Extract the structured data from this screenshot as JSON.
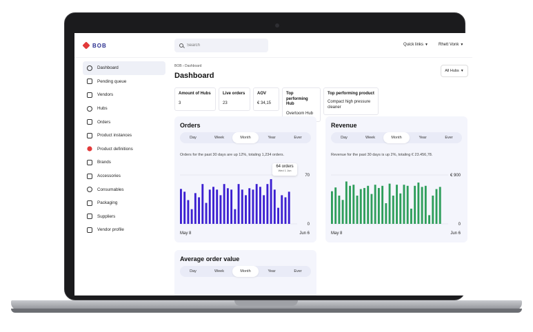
{
  "app": {
    "logo": "BOB"
  },
  "topbar": {
    "search_placeholder": "Search",
    "quick_links": "Quick links",
    "user_name": "Rhett Vonk"
  },
  "sidebar": {
    "items": [
      {
        "label": "Dashboard",
        "icon": "dashboard-icon"
      },
      {
        "label": "Pending queue",
        "icon": "queue-icon"
      },
      {
        "label": "Vendors",
        "icon": "vendors-icon"
      },
      {
        "label": "Hubs",
        "icon": "location-pin-icon"
      },
      {
        "label": "Orders",
        "icon": "cart-icon"
      },
      {
        "label": "Product instances",
        "icon": "qr-code-icon"
      },
      {
        "label": "Product definitions",
        "icon": "product-definition-icon"
      },
      {
        "label": "Brands",
        "icon": "crown-icon"
      },
      {
        "label": "Accessories",
        "icon": "battery-icon"
      },
      {
        "label": "Consumables",
        "icon": "bottle-icon"
      },
      {
        "label": "Packaging",
        "icon": "package-icon"
      },
      {
        "label": "Suppliers",
        "icon": "truck-icon"
      },
      {
        "label": "Vendor profile",
        "icon": "profile-icon"
      }
    ]
  },
  "page": {
    "breadcrumb": "BOB › Dashboard",
    "title": "Dashboard",
    "hub_filter": "All Hubs"
  },
  "stats": [
    {
      "label": "Amount of Hubs",
      "value": "3"
    },
    {
      "label": "Live orders",
      "value": "23"
    },
    {
      "label": "AOV",
      "value": "€ 34,15"
    },
    {
      "label": "Top performing Hub",
      "value": "Overtoom Hub"
    },
    {
      "label": "Top performing product",
      "value": "Compact high pressure cleaner"
    }
  ],
  "tabs": [
    "Day",
    "Week",
    "Month",
    "Year",
    "Ever"
  ],
  "orders_card": {
    "title": "Orders",
    "description": "Orders for the past 30 days are up 12%, totaling 1,234 orders.",
    "tooltip_value": "64 orders",
    "tooltip_date": "Wed 1 Jun"
  },
  "revenue_card": {
    "title": "Revenue",
    "description": "Revenue for the past 30 days is up 2%, totaling € 23.456,78."
  },
  "aov_card": {
    "title": "Average order value"
  },
  "colors": {
    "orders": "#3b1fd1",
    "revenue": "#2e9e5b",
    "accent": "#2a2f8f"
  },
  "chart_data": [
    {
      "type": "bar",
      "title": "Orders",
      "categories": [
        "May 8",
        "",
        "",
        "",
        "",
        "",
        "",
        "",
        "",
        "",
        "",
        "",
        "",
        "",
        "",
        "",
        "",
        "",
        "",
        "",
        "",
        "",
        "",
        "",
        "",
        "",
        "",
        "",
        "",
        "",
        "Jun 6"
      ],
      "x_start_label": "May 8",
      "x_end_label": "Jun 6",
      "y_top_label": "70",
      "y_bottom_label": "0",
      "ylim": [
        0,
        70
      ],
      "values": [
        50,
        46,
        34,
        21,
        44,
        38,
        57,
        30,
        49,
        53,
        49,
        41,
        57,
        51,
        49,
        21,
        57,
        49,
        41,
        51,
        49,
        57,
        53,
        41,
        57,
        64,
        49,
        23,
        41,
        38,
        46
      ]
    },
    {
      "type": "bar",
      "title": "Revenue",
      "categories": [
        "May 8",
        "",
        "",
        "",
        "",
        "",
        "",
        "",
        "",
        "",
        "",
        "",
        "",
        "",
        "",
        "",
        "",
        "",
        "",
        "",
        "",
        "",
        "",
        "",
        "",
        "",
        "",
        "",
        "",
        "",
        "Jun 6"
      ],
      "x_start_label": "May 8",
      "x_end_label": "Jun 6",
      "y_top_label": "€ 900",
      "y_bottom_label": "0",
      "ylim": [
        0,
        900
      ],
      "values": [
        600,
        670,
        520,
        440,
        780,
        700,
        720,
        520,
        640,
        660,
        700,
        550,
        720,
        660,
        700,
        380,
        740,
        520,
        720,
        560,
        720,
        700,
        280,
        700,
        760,
        680,
        700,
        160,
        520,
        640,
        680
      ]
    }
  ]
}
